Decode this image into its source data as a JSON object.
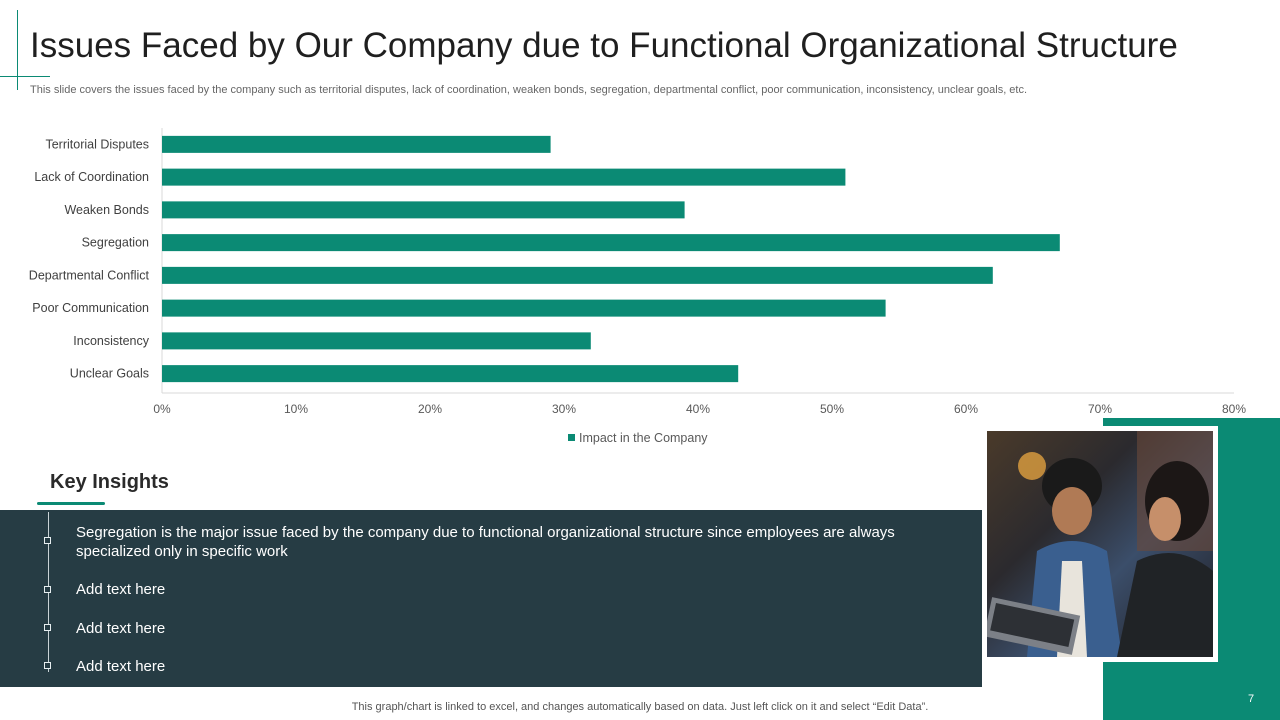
{
  "slide": {
    "title": "Issues Faced by Our Company due to Functional Organizational Structure",
    "subtitle": "This slide covers the issues faced by the company such as territorial disputes, lack of coordination, weaken bonds, segregation, departmental conflict, poor communication, inconsistency, unclear goals, etc.",
    "footer_note": "This graph/chart is linked to excel,  and changes automatically based on data. Just left click on it and select “Edit Data”.",
    "page_number": "7"
  },
  "colors": {
    "accent": "#0b8a74",
    "panel": "#263c44",
    "bar": "#0b8a74"
  },
  "chart_data": {
    "type": "bar",
    "orientation": "horizontal",
    "categories": [
      "Territorial Disputes",
      "Lack of Coordination",
      "Weaken Bonds",
      "Segregation",
      "Departmental Conflict",
      "Poor Communication",
      "Inconsistency",
      "Unclear Goals"
    ],
    "series": [
      {
        "name": "Impact in the Company",
        "values": [
          0.29,
          0.51,
          0.39,
          0.67,
          0.62,
          0.54,
          0.32,
          0.43
        ]
      }
    ],
    "xlim": [
      0,
      0.8
    ],
    "x_ticks": [
      "0%",
      "10%",
      "20%",
      "30%",
      "40%",
      "50%",
      "60%",
      "70%",
      "80%"
    ],
    "grid": false,
    "legend_position": "bottom"
  },
  "insights": {
    "heading": "Key Insights",
    "items": [
      "Segregation is the major issue faced by the company due to functional  organizational structure since employees are always specialized only  in specific work",
      "Add text here",
      "Add text here",
      "Add text here"
    ]
  },
  "photo": {
    "icon": "photo-two-women-laptop"
  }
}
